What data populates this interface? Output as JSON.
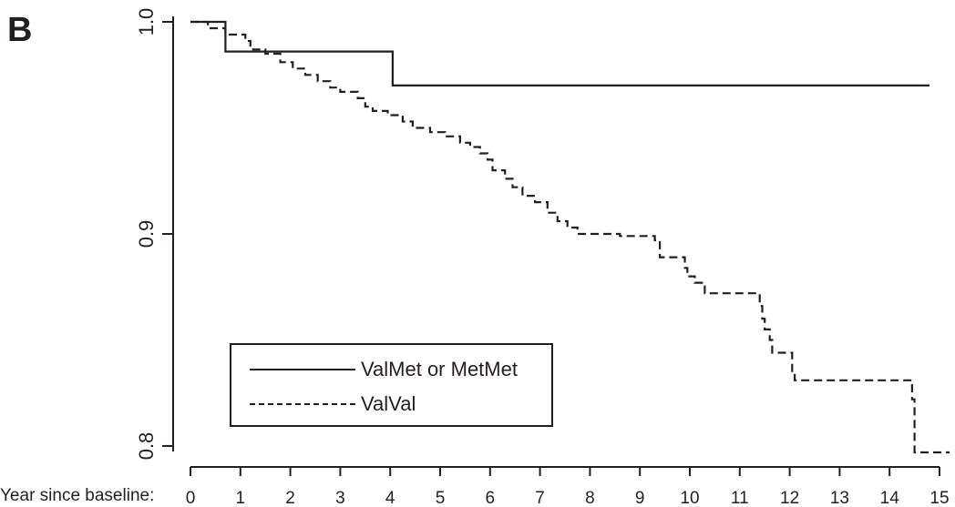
{
  "panel_label": "B",
  "x_axis_prefix": "Year since baseline:",
  "legend": [
    {
      "label": "ValMet or MetMet",
      "style": "solid"
    },
    {
      "label": "ValVal",
      "style": "dashed"
    }
  ],
  "chart_data": {
    "type": "line",
    "title": "",
    "xlabel": "Year since baseline:",
    "ylabel": "",
    "xlim": [
      -0.5,
      15.3
    ],
    "ylim": [
      0.795,
      1.0
    ],
    "xticks": [
      0,
      1,
      2,
      3,
      4,
      5,
      6,
      7,
      8,
      9,
      10,
      11,
      12,
      13,
      14,
      15
    ],
    "yticks": [
      0.8,
      0.9,
      1.0
    ],
    "ytick_labels": [
      "0.8",
      "0.9",
      "1.0"
    ],
    "grid": false,
    "legend_position": "bottom-left",
    "series": [
      {
        "name": "ValMet or MetMet",
        "style": "solid",
        "step": true,
        "points": [
          [
            0,
            1.0
          ],
          [
            0.7,
            0.986
          ],
          [
            4.05,
            0.97
          ],
          [
            14.8,
            0.97
          ]
        ]
      },
      {
        "name": "ValVal",
        "style": "dashed",
        "step": true,
        "points": [
          [
            0,
            1.0
          ],
          [
            0.35,
            0.997
          ],
          [
            0.7,
            0.994
          ],
          [
            1.1,
            0.991
          ],
          [
            1.2,
            0.987
          ],
          [
            1.5,
            0.985
          ],
          [
            1.8,
            0.981
          ],
          [
            2.05,
            0.978
          ],
          [
            2.3,
            0.975
          ],
          [
            2.55,
            0.972
          ],
          [
            2.8,
            0.969
          ],
          [
            3.0,
            0.967
          ],
          [
            3.35,
            0.964
          ],
          [
            3.5,
            0.96
          ],
          [
            3.65,
            0.958
          ],
          [
            3.95,
            0.956
          ],
          [
            4.25,
            0.953
          ],
          [
            4.45,
            0.95
          ],
          [
            4.8,
            0.948
          ],
          [
            5.1,
            0.946
          ],
          [
            5.4,
            0.943
          ],
          [
            5.6,
            0.941
          ],
          [
            5.8,
            0.938
          ],
          [
            5.95,
            0.935
          ],
          [
            6.05,
            0.93
          ],
          [
            6.3,
            0.926
          ],
          [
            6.45,
            0.922
          ],
          [
            6.65,
            0.918
          ],
          [
            6.9,
            0.915
          ],
          [
            7.15,
            0.91
          ],
          [
            7.35,
            0.906
          ],
          [
            7.55,
            0.903
          ],
          [
            7.75,
            0.9
          ],
          [
            8.6,
            0.899
          ],
          [
            9.3,
            0.897
          ],
          [
            9.4,
            0.889
          ],
          [
            9.9,
            0.884
          ],
          [
            9.95,
            0.88
          ],
          [
            10.1,
            0.877
          ],
          [
            10.3,
            0.872
          ],
          [
            11.4,
            0.866
          ],
          [
            11.45,
            0.86
          ],
          [
            11.5,
            0.855
          ],
          [
            11.6,
            0.85
          ],
          [
            11.65,
            0.844
          ],
          [
            12.05,
            0.834
          ],
          [
            12.1,
            0.831
          ],
          [
            14.45,
            0.822
          ],
          [
            14.5,
            0.797
          ],
          [
            15.2,
            0.797
          ]
        ]
      }
    ]
  }
}
